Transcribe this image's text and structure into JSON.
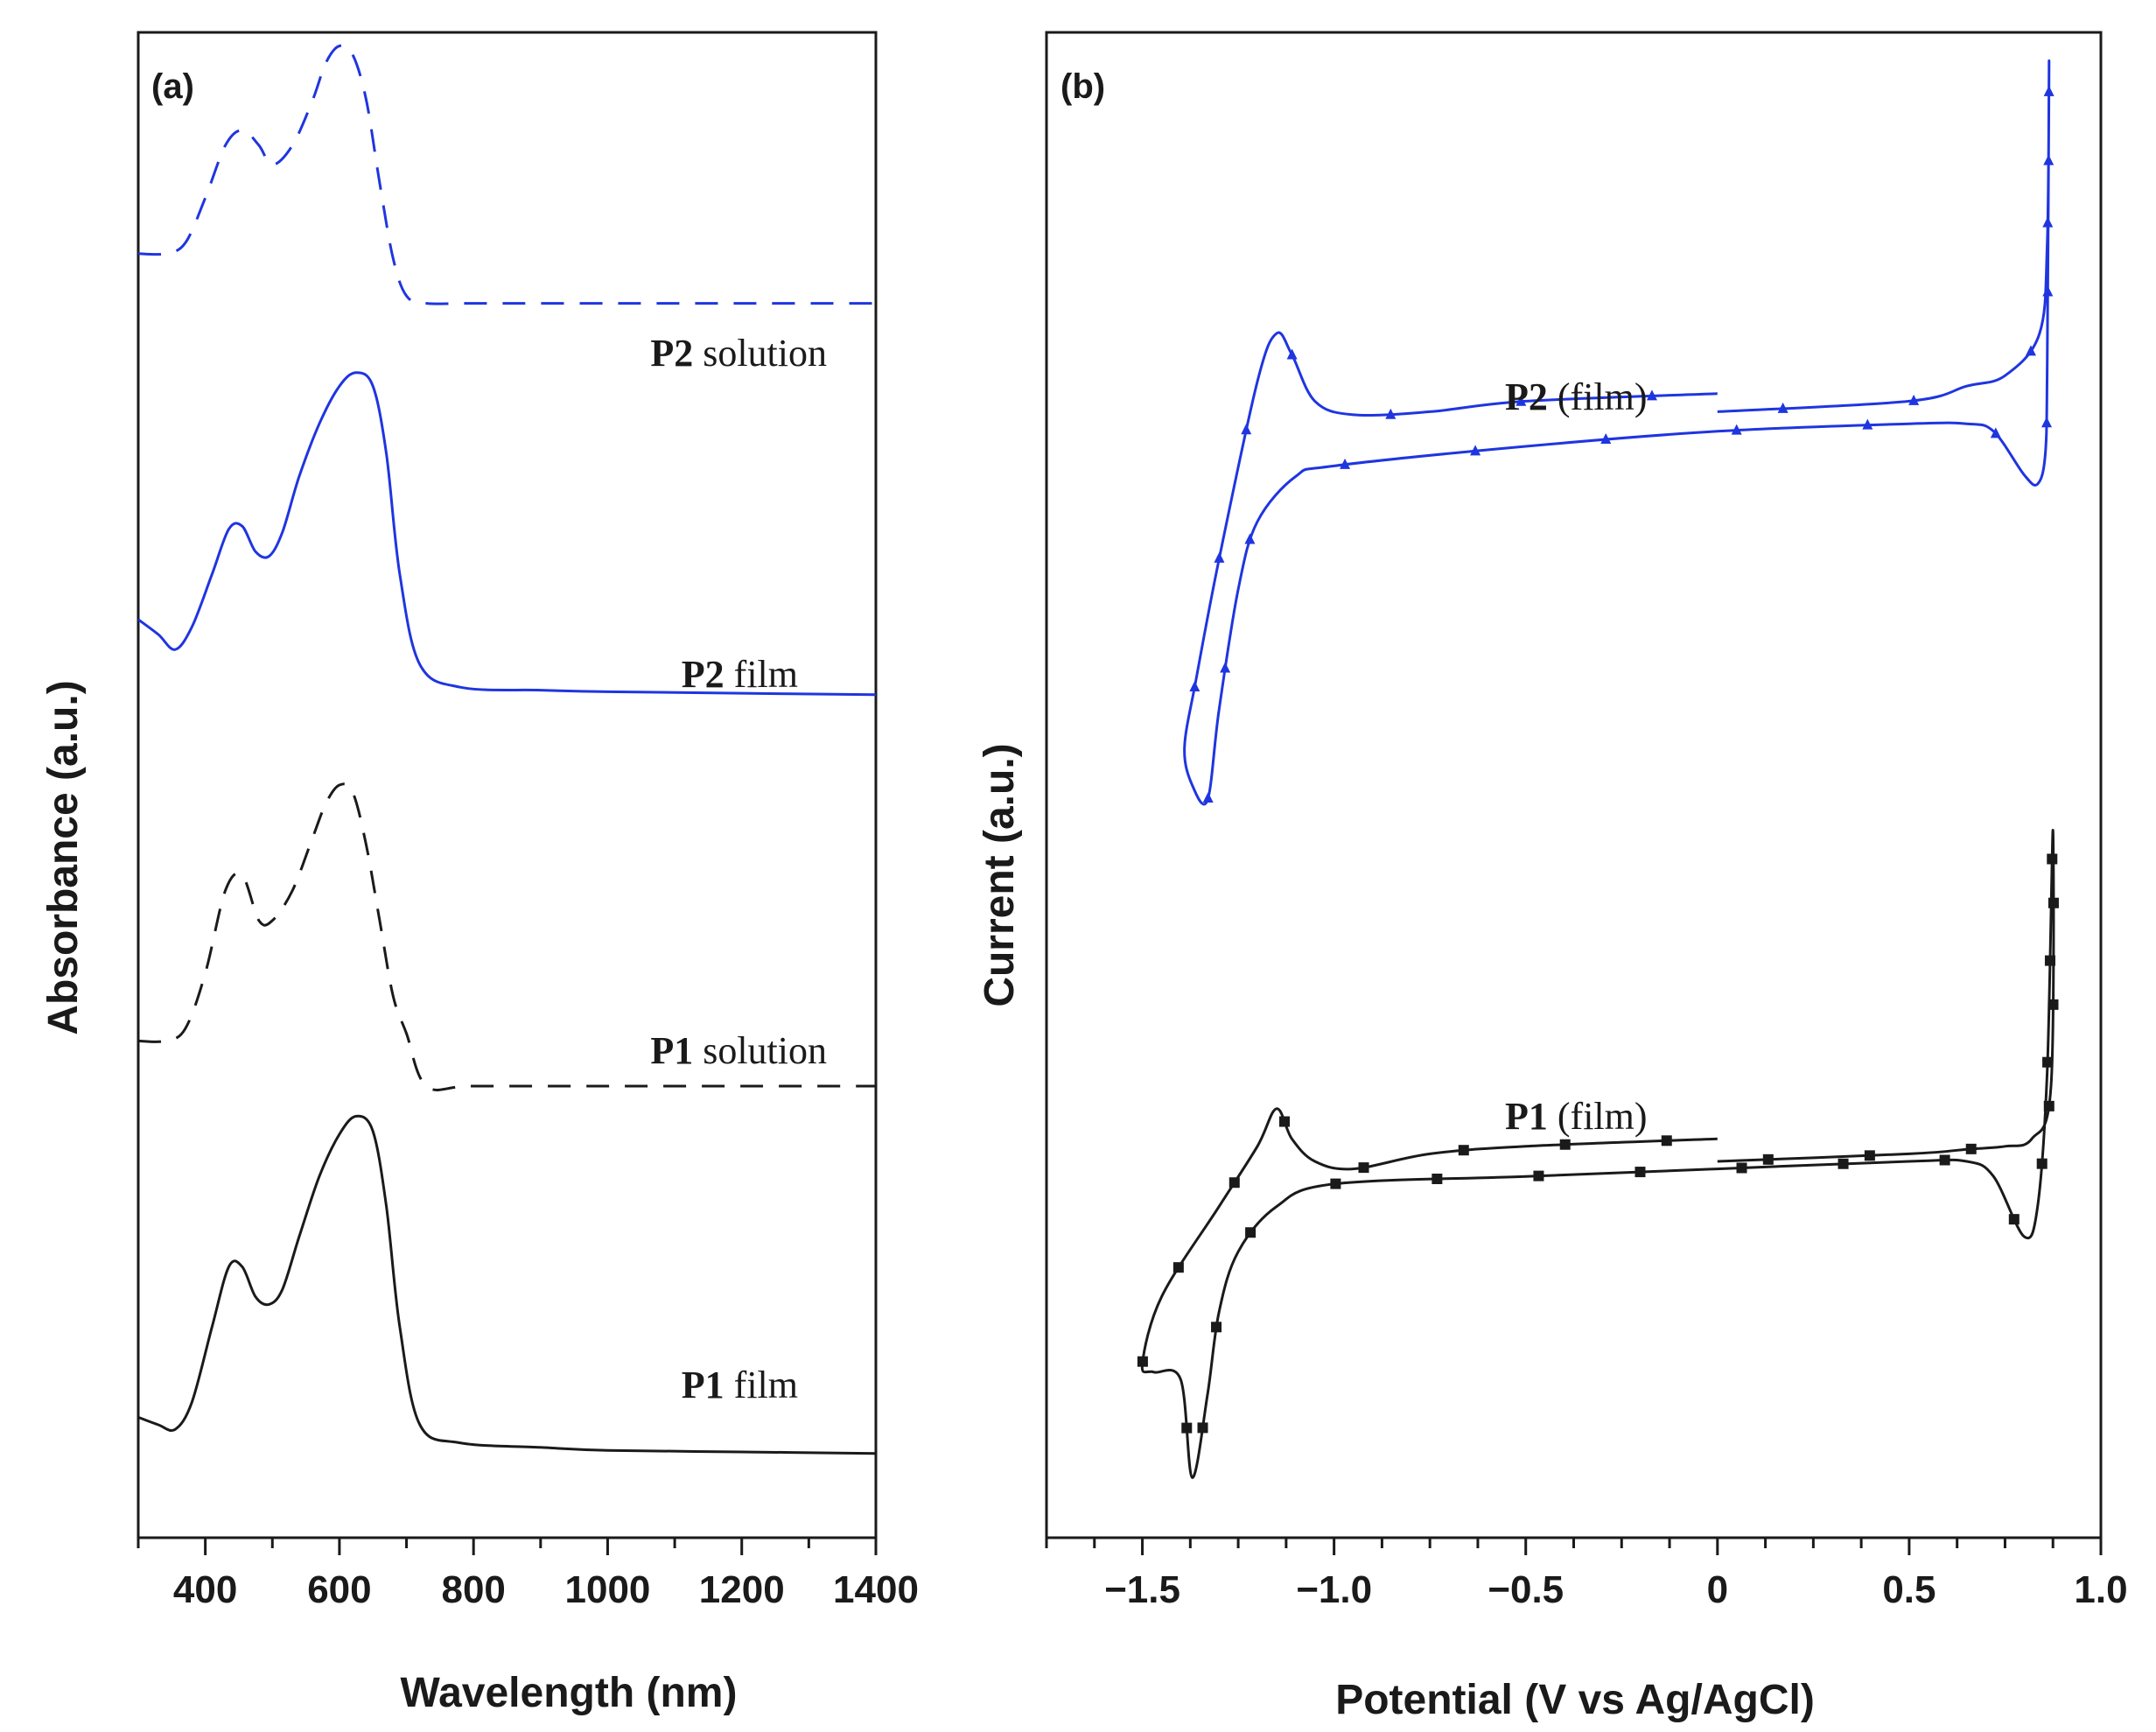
{
  "chart_data": [
    {
      "panel": "(a)",
      "type": "line",
      "xlabel": "Wavelength (nm)",
      "ylabel": "Absorbance (a.u.)",
      "xlim": [
        300,
        1400
      ],
      "ylim": [
        0,
        1
      ],
      "xticks": [
        "400",
        "600",
        "800",
        "1000",
        "1200",
        "1400"
      ],
      "grid": false,
      "series": [
        {
          "name": "P2 solution",
          "bold": "P2",
          "rest": " solution",
          "style": "dashed",
          "color": "#1f35e0",
          "x": [
            300,
            340,
            370,
            400,
            430,
            455,
            480,
            500,
            530,
            560,
            580,
            600,
            620,
            640,
            660,
            680,
            700,
            730,
            800,
            1000,
            1200,
            1400
          ],
          "y": [
            0.853,
            0.853,
            0.86,
            0.89,
            0.925,
            0.935,
            0.925,
            0.912,
            0.925,
            0.955,
            0.98,
            0.991,
            0.985,
            0.955,
            0.9,
            0.85,
            0.825,
            0.82,
            0.82,
            0.82,
            0.82,
            0.82
          ]
        },
        {
          "name": "P2 film",
          "bold": "P2",
          "rest": " film",
          "style": "solid",
          "color": "#1f35e0",
          "x": [
            300,
            330,
            355,
            380,
            410,
            435,
            455,
            475,
            495,
            515,
            540,
            570,
            600,
            625,
            650,
            670,
            690,
            720,
            780,
            900,
            1000,
            1200,
            1400
          ],
          "y": [
            0.61,
            0.6,
            0.59,
            0.605,
            0.64,
            0.67,
            0.672,
            0.655,
            0.652,
            0.668,
            0.705,
            0.74,
            0.765,
            0.774,
            0.765,
            0.72,
            0.64,
            0.58,
            0.565,
            0.563,
            0.562,
            0.561,
            0.56
          ]
        },
        {
          "name": "P1 solution",
          "bold": "P1",
          "rest": " solution",
          "style": "dashed",
          "color": "#1a1a1a",
          "x": [
            300,
            340,
            370,
            400,
            430,
            455,
            480,
            500,
            530,
            560,
            580,
            600,
            620,
            640,
            660,
            680,
            700,
            730,
            800,
            1000,
            1200,
            1400
          ],
          "y": [
            0.33,
            0.33,
            0.338,
            0.375,
            0.43,
            0.44,
            0.41,
            0.41,
            0.43,
            0.465,
            0.488,
            0.5,
            0.495,
            0.46,
            0.41,
            0.36,
            0.335,
            0.3,
            0.3,
            0.3,
            0.3,
            0.3
          ]
        },
        {
          "name": "P1 film",
          "bold": "P1",
          "rest": " film",
          "style": "solid",
          "color": "#1a1a1a",
          "x": [
            300,
            330,
            355,
            380,
            410,
            435,
            455,
            475,
            495,
            515,
            540,
            570,
            600,
            625,
            650,
            670,
            690,
            720,
            780,
            900,
            1000,
            1200,
            1400
          ],
          "y": [
            0.08,
            0.075,
            0.072,
            0.09,
            0.14,
            0.18,
            0.18,
            0.16,
            0.155,
            0.165,
            0.2,
            0.24,
            0.268,
            0.28,
            0.27,
            0.22,
            0.14,
            0.075,
            0.063,
            0.06,
            0.058,
            0.057,
            0.056
          ]
        }
      ]
    },
    {
      "panel": "(b)",
      "type": "line",
      "xlabel": "Potential (V vs Ag/AgCl)",
      "ylabel": "Current (a.u.)",
      "xlim": [
        -1.75,
        1.0
      ],
      "ylim": [
        0,
        1
      ],
      "xticks": [
        "−1.5",
        "−1.0",
        "−0.5",
        "0",
        "0.5",
        "1.0"
      ],
      "grid": false,
      "series": [
        {
          "name": "P2 (film)",
          "bold": "P2",
          "rest": " (film)",
          "color": "#1f35e0",
          "marker": "triangle",
          "x": [
            0.0,
            -0.5,
            -0.75,
            -0.95,
            -1.05,
            -1.11,
            -1.15,
            -1.2,
            -1.3,
            -1.36,
            -1.39,
            -1.37,
            -1.33,
            -1.3,
            -1.25,
            -1.2,
            -1.1,
            -1.0,
            -0.5,
            0.0,
            0.5,
            0.65,
            0.72,
            0.8,
            0.835,
            0.855,
            0.86,
            0.865,
            0.86,
            0.84,
            0.75,
            0.65,
            0.5,
            0.0
          ],
          "y": [
            0.76,
            0.755,
            0.748,
            0.746,
            0.755,
            0.786,
            0.8,
            0.768,
            0.65,
            0.57,
            0.525,
            0.5,
            0.49,
            0.55,
            0.63,
            0.675,
            0.705,
            0.712,
            0.725,
            0.735,
            0.74,
            0.74,
            0.735,
            0.706,
            0.7,
            0.72,
            0.78,
            0.98,
            0.86,
            0.8,
            0.772,
            0.765,
            0.755,
            0.748
          ],
          "markers": 24
        },
        {
          "name": "P1 (film)",
          "bold": "P1",
          "rest": " (film)",
          "color": "#1a1a1a",
          "marker": "square",
          "x": [
            0.0,
            -0.5,
            -0.75,
            -0.95,
            -1.05,
            -1.11,
            -1.15,
            -1.2,
            -1.3,
            -1.45,
            -1.5,
            -1.47,
            -1.4,
            -1.37,
            -1.33,
            -1.3,
            -1.25,
            -1.15,
            -1.0,
            -0.5,
            0.0,
            0.5,
            0.65,
            0.72,
            0.8,
            0.835,
            0.86,
            0.875,
            0.87,
            0.82,
            0.75,
            0.65,
            0.5,
            0.0
          ],
          "y": [
            0.265,
            0.26,
            0.255,
            0.245,
            0.25,
            0.265,
            0.285,
            0.26,
            0.22,
            0.16,
            0.115,
            0.11,
            0.105,
            0.04,
            0.095,
            0.15,
            0.19,
            0.22,
            0.235,
            0.24,
            0.245,
            0.25,
            0.25,
            0.24,
            0.2,
            0.22,
            0.31,
            0.47,
            0.3,
            0.265,
            0.26,
            0.258,
            0.255,
            0.25
          ],
          "markers": 30
        }
      ]
    }
  ]
}
